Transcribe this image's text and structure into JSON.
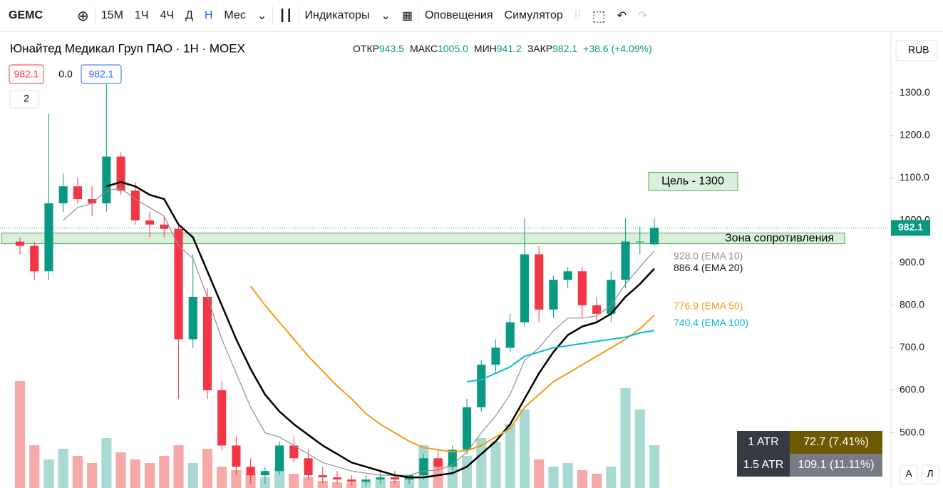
{
  "toolbar": {
    "symbol": "GEMC",
    "intervals": [
      "15М",
      "1Ч",
      "4Ч",
      "Д",
      "Н",
      "Мес"
    ],
    "indicators": "Индикаторы",
    "alerts": "Оповещения",
    "simulator": "Симулятор"
  },
  "legend": {
    "title": "Юнайтед Медикал Груп ПАО · 1Н · MOEX",
    "open_label": "ОТКР",
    "open": "943.5",
    "high_label": "МАКС",
    "high": "1005.0",
    "low_label": "МИН",
    "low": "941.2",
    "close_label": "ЗАКР",
    "close": "982.1",
    "change": "+38.6 (+4.09%)",
    "bid": "982.1",
    "spread": "0.0",
    "ask": "982.1",
    "collapsed": "2"
  },
  "currency": "RUB",
  "atr_table": {
    "rows": [
      [
        "1 ATR",
        "72.7 (7.41%)"
      ],
      [
        "1.5 ATR",
        "109.1 (11.11%)"
      ]
    ]
  },
  "scale_buttons": [
    "A",
    "Л"
  ],
  "chart_data": {
    "type": "candlestick",
    "ylim": [
      370,
      1443
    ],
    "yticks": [
      {
        "value": 500,
        "label": "500.0"
      },
      {
        "value": 600,
        "label": "600.0"
      },
      {
        "value": 700,
        "label": "700.0"
      },
      {
        "value": 800,
        "label": "800.0"
      },
      {
        "value": 900,
        "label": "900.0"
      },
      {
        "value": 1000,
        "label": "1000.0"
      },
      {
        "value": 1100,
        "label": "1100.0"
      },
      {
        "value": 1200,
        "label": "1200.0"
      },
      {
        "value": 1300,
        "label": "1300.0"
      }
    ],
    "open": [
      950,
      940,
      880,
      1040,
      1080,
      1050,
      1040,
      1150,
      1070,
      1000,
      990,
      980,
      720,
      820,
      600,
      470,
      420,
      400,
      410,
      470,
      440,
      400,
      395,
      390,
      385,
      390,
      395,
      390,
      400,
      440,
      420,
      460,
      560,
      660,
      700,
      760,
      920,
      790,
      860,
      880,
      800,
      780,
      860,
      950,
      943.5
    ],
    "high": [
      960,
      950,
      1250,
      1110,
      1100,
      1080,
      1320,
      1160,
      1090,
      1020,
      1010,
      990,
      920,
      840,
      620,
      490,
      440,
      420,
      480,
      490,
      460,
      420,
      410,
      400,
      400,
      410,
      410,
      400,
      450,
      460,
      470,
      580,
      670,
      720,
      780,
      1005,
      940,
      870,
      890,
      890,
      820,
      880,
      1005,
      985,
      1005
    ],
    "low": [
      920,
      860,
      860,
      1020,
      1040,
      1010,
      1020,
      1060,
      990,
      960,
      960,
      580,
      700,
      580,
      460,
      400,
      380,
      380,
      400,
      430,
      390,
      380,
      380,
      375,
      375,
      380,
      380,
      380,
      390,
      410,
      410,
      450,
      550,
      640,
      690,
      750,
      760,
      770,
      840,
      770,
      760,
      760,
      840,
      920,
      941.2
    ],
    "close": [
      940,
      880,
      1040,
      1080,
      1050,
      1040,
      1150,
      1070,
      1000,
      990,
      980,
      720,
      820,
      600,
      470,
      420,
      400,
      410,
      470,
      440,
      400,
      395,
      390,
      385,
      390,
      395,
      390,
      400,
      440,
      420,
      460,
      560,
      660,
      700,
      760,
      920,
      790,
      860,
      880,
      800,
      780,
      860,
      950,
      950,
      982.1
    ],
    "volume": [
      150,
      60,
      40,
      55,
      45,
      35,
      70,
      50,
      40,
      35,
      45,
      60,
      35,
      55,
      30,
      25,
      20,
      15,
      30,
      20,
      15,
      10,
      8,
      8,
      10,
      12,
      10,
      15,
      60,
      40,
      35,
      45,
      70,
      65,
      90,
      110,
      40,
      30,
      35,
      25,
      20,
      30,
      140,
      110,
      60
    ],
    "series": [
      {
        "name": "EMA 10",
        "label": "928.0 (EMA 10)",
        "color": "#909090",
        "values": [
          null,
          null,
          null,
          1000,
          1030,
          1040,
          1070,
          1075,
          1050,
          1030,
          1010,
          940,
          910,
          820,
          720,
          640,
          560,
          500,
          490,
          470,
          450,
          430,
          420,
          410,
          405,
          400,
          400,
          400,
          410,
          412,
          425,
          455,
          500,
          540,
          590,
          670,
          700,
          740,
          770,
          770,
          775,
          800,
          850,
          890,
          928
        ]
      },
      {
        "name": "EMA 20",
        "label": "886.4 (EMA 20)",
        "color": "#000000",
        "values": [
          null,
          null,
          null,
          null,
          null,
          null,
          1080,
          1090,
          1080,
          1060,
          1050,
          990,
          960,
          880,
          800,
          720,
          650,
          590,
          550,
          520,
          495,
          470,
          450,
          430,
          420,
          410,
          400,
          395,
          395,
          400,
          405,
          420,
          450,
          480,
          520,
          580,
          640,
          690,
          730,
          750,
          760,
          780,
          820,
          850,
          886.4
        ]
      },
      {
        "name": "EMA 50",
        "label": "776.9 (EMA 50)",
        "color": "#f39c12",
        "values": [
          null,
          null,
          null,
          null,
          null,
          null,
          null,
          null,
          null,
          null,
          null,
          null,
          null,
          null,
          null,
          null,
          845,
          800,
          760,
          720,
          680,
          645,
          610,
          580,
          545,
          520,
          500,
          480,
          465,
          460,
          455,
          458,
          470,
          490,
          510,
          560,
          590,
          620,
          640,
          660,
          680,
          700,
          720,
          745,
          776.9
        ]
      },
      {
        "name": "EMA 100",
        "label": "740.4 (EMA 100)",
        "color": "#00bcd4",
        "values": [
          null,
          null,
          null,
          null,
          null,
          null,
          null,
          null,
          null,
          null,
          null,
          null,
          null,
          null,
          null,
          null,
          null,
          null,
          null,
          null,
          null,
          null,
          null,
          null,
          null,
          null,
          null,
          null,
          null,
          null,
          null,
          620,
          625,
          640,
          655,
          680,
          690,
          700,
          705,
          710,
          715,
          720,
          725,
          735,
          740.4
        ]
      }
    ],
    "zone": {
      "label": "Зона сопротивления",
      "from": 945,
      "to": 970
    },
    "target": {
      "label": "Цель - 1300",
      "from": 1070,
      "to": 1113
    }
  }
}
